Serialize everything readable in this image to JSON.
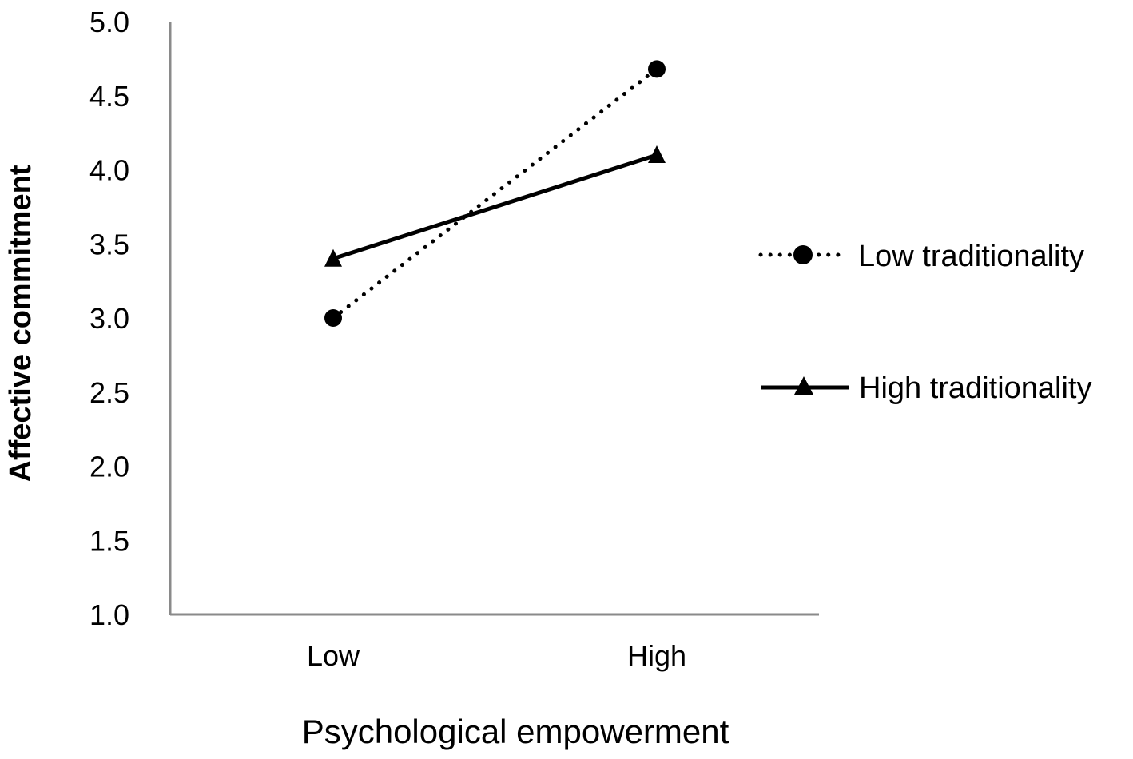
{
  "chart_data": {
    "type": "line",
    "title": "",
    "xlabel": "Psychological empowerment",
    "ylabel": "Affective commitment",
    "categories": [
      "Low",
      "High"
    ],
    "ylim": [
      1.0,
      5.0
    ],
    "yticks": [
      "1.0",
      "1.5",
      "2.0",
      "2.5",
      "3.0",
      "3.5",
      "4.0",
      "4.5",
      "5.0"
    ],
    "grid": false,
    "legend_position": "right",
    "series": [
      {
        "name": "Low traditionality",
        "values": [
          3.0,
          4.68
        ],
        "line_style": "dotted",
        "marker": "circle",
        "color": "#000000"
      },
      {
        "name": "High traditionality",
        "values": [
          3.4,
          4.1
        ],
        "line_style": "solid",
        "marker": "triangle",
        "color": "#000000"
      }
    ]
  }
}
